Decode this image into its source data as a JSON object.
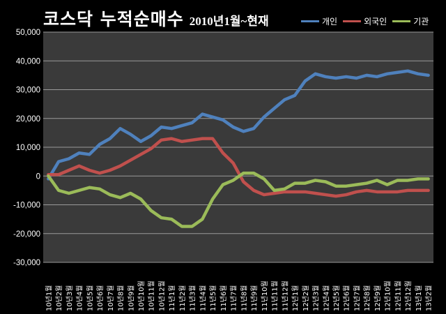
{
  "chart_data": {
    "type": "line",
    "title": "코스닥 누적순매수",
    "subtitle": "2010년1월~현재",
    "ylim": [
      -30000,
      50000
    ],
    "yticks": [
      50000,
      40000,
      30000,
      20000,
      10000,
      0,
      -10000,
      -20000,
      -30000
    ],
    "ytick_labels": [
      "50,000",
      "40,000",
      "30,000",
      "20,000",
      "10,000",
      "0",
      "-10,000",
      "-20,000",
      "-30,000"
    ],
    "x_tick_labels": [
      "10년1월",
      "10년2월",
      "10년3월",
      "10년4월",
      "10년5월",
      "10년6월",
      "10년7월",
      "10년8월",
      "10년9월",
      "10년10월",
      "10년11월",
      "10년12월",
      "11년1월",
      "11년2월",
      "11년3월",
      "11년4월",
      "11년5월",
      "11년6월",
      "11년7월",
      "11년8월",
      "11년9월",
      "11년10월",
      "11년11월",
      "11년12월",
      "12년1월",
      "12년2월",
      "12년3월",
      "12년4월",
      "12년5월",
      "12년6월",
      "12년7월",
      "12년8월",
      "12년9월",
      "12년10월",
      "12년11월",
      "12년12월",
      "13년1월",
      "13년2월"
    ],
    "grid": true,
    "legend_position": "top-right",
    "series": [
      {
        "name": "개인",
        "color": "#4f81bd",
        "values": [
          -1000,
          5000,
          6000,
          8000,
          7500,
          11000,
          13000,
          16500,
          14500,
          12000,
          14000,
          17000,
          16500,
          17500,
          18500,
          21500,
          20500,
          19500,
          17000,
          15500,
          16500,
          20500,
          23500,
          26500,
          28000,
          33000,
          35500,
          34500,
          34000,
          34500,
          34000,
          35000,
          34500,
          35500,
          36000,
          36500,
          35500,
          35000
        ]
      },
      {
        "name": "외국인",
        "color": "#c0504d",
        "values": [
          500,
          500,
          2000,
          3500,
          2000,
          1000,
          2000,
          3500,
          5500,
          7500,
          9500,
          12500,
          13000,
          12000,
          12500,
          13000,
          13000,
          8000,
          4500,
          -2000,
          -5000,
          -6500,
          -6000,
          -5500,
          -5500,
          -5500,
          -6000,
          -6500,
          -7000,
          -6500,
          -5500,
          -5000,
          -5500,
          -5500,
          -5500,
          -5000,
          -5000,
          -5000
        ]
      },
      {
        "name": "기관",
        "color": "#9bbb59",
        "values": [
          0,
          -5000,
          -6000,
          -5000,
          -4000,
          -4500,
          -6500,
          -7500,
          -6000,
          -8000,
          -12000,
          -14500,
          -15000,
          -17500,
          -17500,
          -15000,
          -8000,
          -3000,
          -1500,
          1000,
          1000,
          -1000,
          -5000,
          -4500,
          -2500,
          -2500,
          -1500,
          -2000,
          -3500,
          -3500,
          -3000,
          -2500,
          -1500,
          -3000,
          -1500,
          -1500,
          -1000,
          -1000
        ]
      }
    ]
  }
}
